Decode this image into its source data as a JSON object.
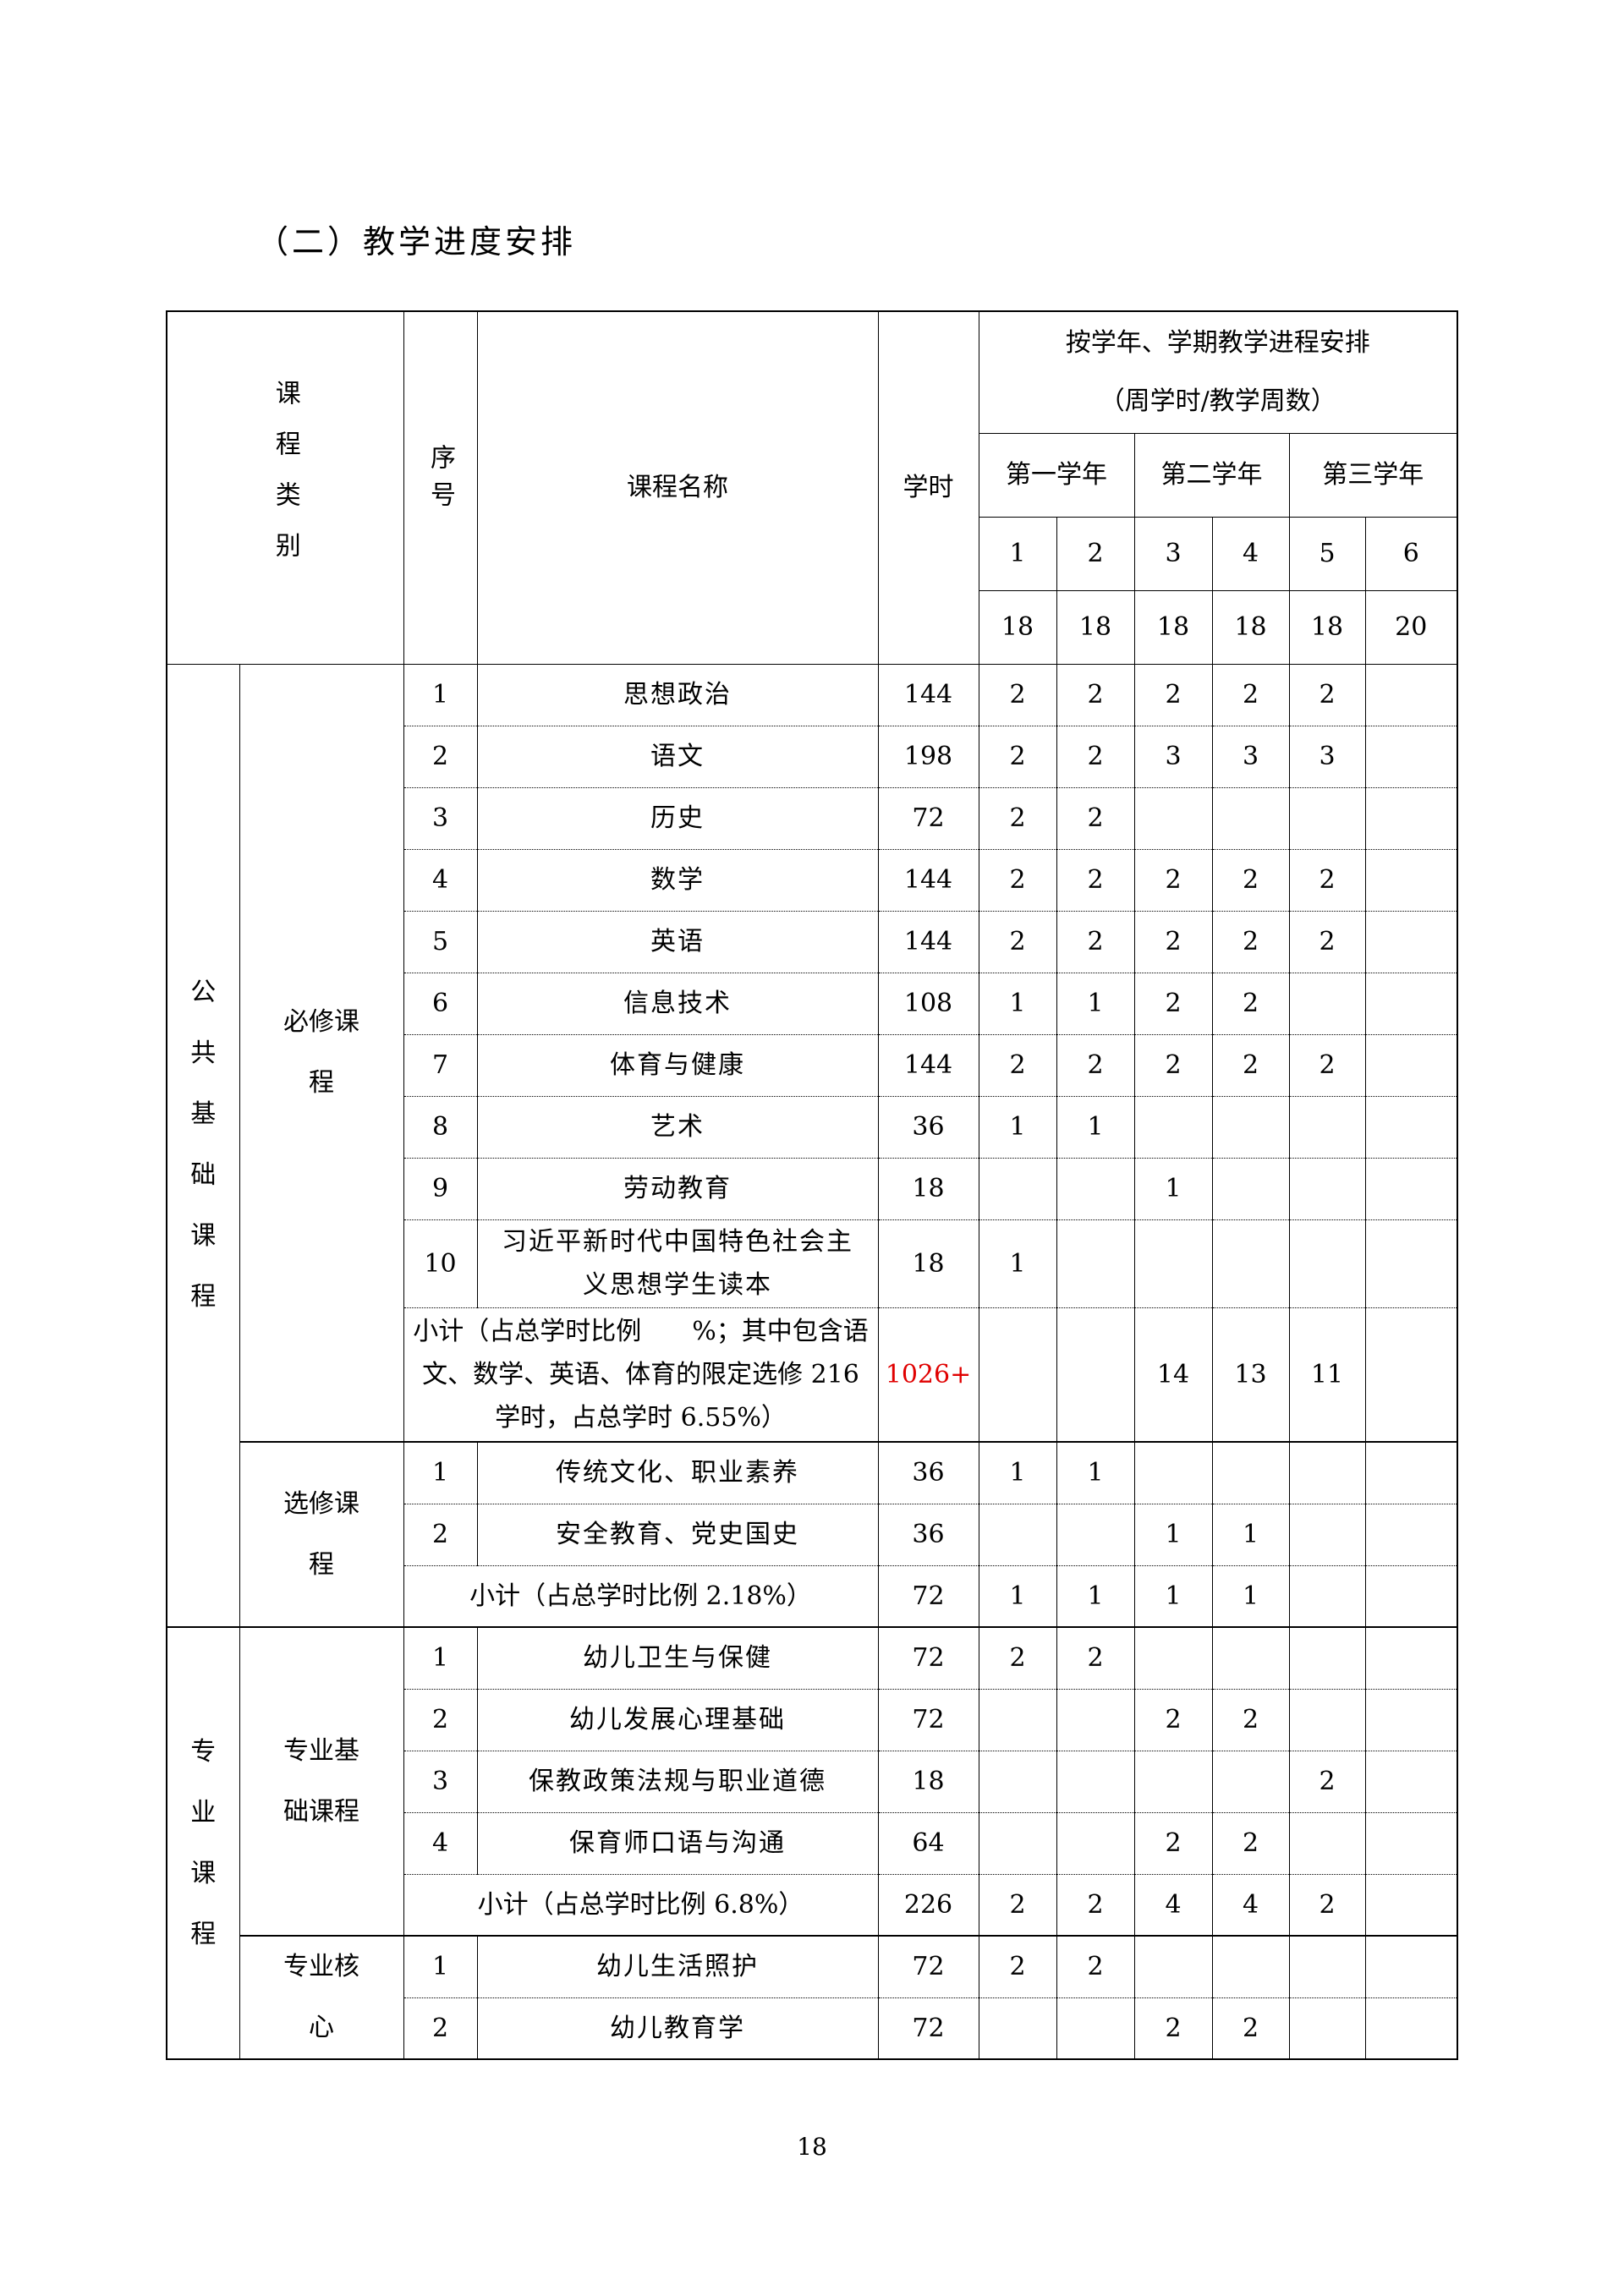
{
  "title": "（二）教学进度安排",
  "page_number": "18",
  "header": {
    "category": "课程类别",
    "seq": "序号",
    "name": "课程名称",
    "hours": "学时",
    "schedule_line1": "按学年、学期教学进程安排",
    "schedule_line2": "（周学时/教学周数）",
    "years": [
      "第一学年",
      "第二学年",
      "第三学年"
    ],
    "semesters": [
      "1",
      "2",
      "3",
      "4",
      "5",
      "6"
    ],
    "weeks": [
      "18",
      "18",
      "18",
      "18",
      "18",
      "20"
    ]
  },
  "groups": [
    {
      "category": "公共基础课程",
      "subgroups": [
        {
          "label": "必修课程",
          "rows": [
            {
              "seq": "1",
              "name": "思想政治",
              "hours": "144",
              "weekly": [
                "2",
                "2",
                "2",
                "2",
                "2",
                ""
              ]
            },
            {
              "seq": "2",
              "name": "语文",
              "hours": "198",
              "weekly": [
                "2",
                "2",
                "3",
                "3",
                "3",
                ""
              ]
            },
            {
              "seq": "3",
              "name": "历史",
              "hours": "72",
              "weekly": [
                "2",
                "2",
                "",
                "",
                "",
                ""
              ]
            },
            {
              "seq": "4",
              "name": "数学",
              "hours": "144",
              "weekly": [
                "2",
                "2",
                "2",
                "2",
                "2",
                ""
              ]
            },
            {
              "seq": "5",
              "name": "英语",
              "hours": "144",
              "weekly": [
                "2",
                "2",
                "2",
                "2",
                "2",
                ""
              ]
            },
            {
              "seq": "6",
              "name": "信息技术",
              "hours": "108",
              "weekly": [
                "1",
                "1",
                "2",
                "2",
                "",
                ""
              ]
            },
            {
              "seq": "7",
              "name": "体育与健康",
              "hours": "144",
              "weekly": [
                "2",
                "2",
                "2",
                "2",
                "2",
                ""
              ]
            },
            {
              "seq": "8",
              "name": "艺术",
              "hours": "36",
              "weekly": [
                "1",
                "1",
                "",
                "",
                "",
                ""
              ]
            },
            {
              "seq": "9",
              "name": "劳动教育",
              "hours": "18",
              "weekly": [
                "",
                "",
                "1",
                "",
                "",
                ""
              ]
            },
            {
              "seq": "10",
              "name": "习近平新时代中国特色社会主义思想学生读本",
              "hours": "18",
              "weekly": [
                "1",
                "",
                "",
                "",
                "",
                ""
              ]
            }
          ],
          "subtotal": {
            "name": "小计（占总学时比例　　%；其中包含语文、数学、英语、体育的限定选修 216 学时，占总学时 6.55%）",
            "hours": "1026+",
            "hours_color": "#e00000",
            "weekly": [
              "",
              "",
              "14",
              "13",
              "11",
              ""
            ]
          }
        },
        {
          "label": "选修课程",
          "rows": [
            {
              "seq": "1",
              "name": "传统文化、职业素养",
              "hours": "36",
              "weekly": [
                "1",
                "1",
                "",
                "",
                "",
                ""
              ]
            },
            {
              "seq": "2",
              "name": "安全教育、党史国史",
              "hours": "36",
              "weekly": [
                "",
                "",
                "1",
                "1",
                "",
                ""
              ]
            }
          ],
          "subtotal": {
            "name": "小计（占总学时比例 2.18%）",
            "hours": "72",
            "weekly": [
              "1",
              "1",
              "1",
              "1",
              "",
              ""
            ]
          }
        }
      ]
    },
    {
      "category": "专业课程",
      "subgroups": [
        {
          "label": "专业基础课程",
          "rows": [
            {
              "seq": "1",
              "name": "幼儿卫生与保健",
              "hours": "72",
              "weekly": [
                "2",
                "2",
                "",
                "",
                "",
                ""
              ]
            },
            {
              "seq": "2",
              "name": "幼儿发展心理基础",
              "hours": "72",
              "weekly": [
                "",
                "",
                "2",
                "2",
                "",
                ""
              ]
            },
            {
              "seq": "3",
              "name": "保教政策法规与职业道德",
              "hours": "18",
              "weekly": [
                "",
                "",
                "",
                "",
                "2",
                ""
              ]
            },
            {
              "seq": "4",
              "name": "保育师口语与沟通",
              "hours": "64",
              "weekly": [
                "",
                "",
                "2",
                "2",
                "",
                ""
              ]
            }
          ],
          "subtotal": {
            "name": "小计（占总学时比例 6.8%）",
            "hours": "226",
            "weekly": [
              "2",
              "2",
              "4",
              "4",
              "2",
              ""
            ]
          }
        },
        {
          "label": "专业核心",
          "rows": [
            {
              "seq": "1",
              "name": "幼儿生活照护",
              "hours": "72",
              "weekly": [
                "2",
                "2",
                "",
                "",
                "",
                ""
              ]
            },
            {
              "seq": "2",
              "name": "幼儿教育学",
              "hours": "72",
              "weekly": [
                "",
                "",
                "2",
                "2",
                "",
                ""
              ]
            }
          ]
        }
      ]
    }
  ]
}
